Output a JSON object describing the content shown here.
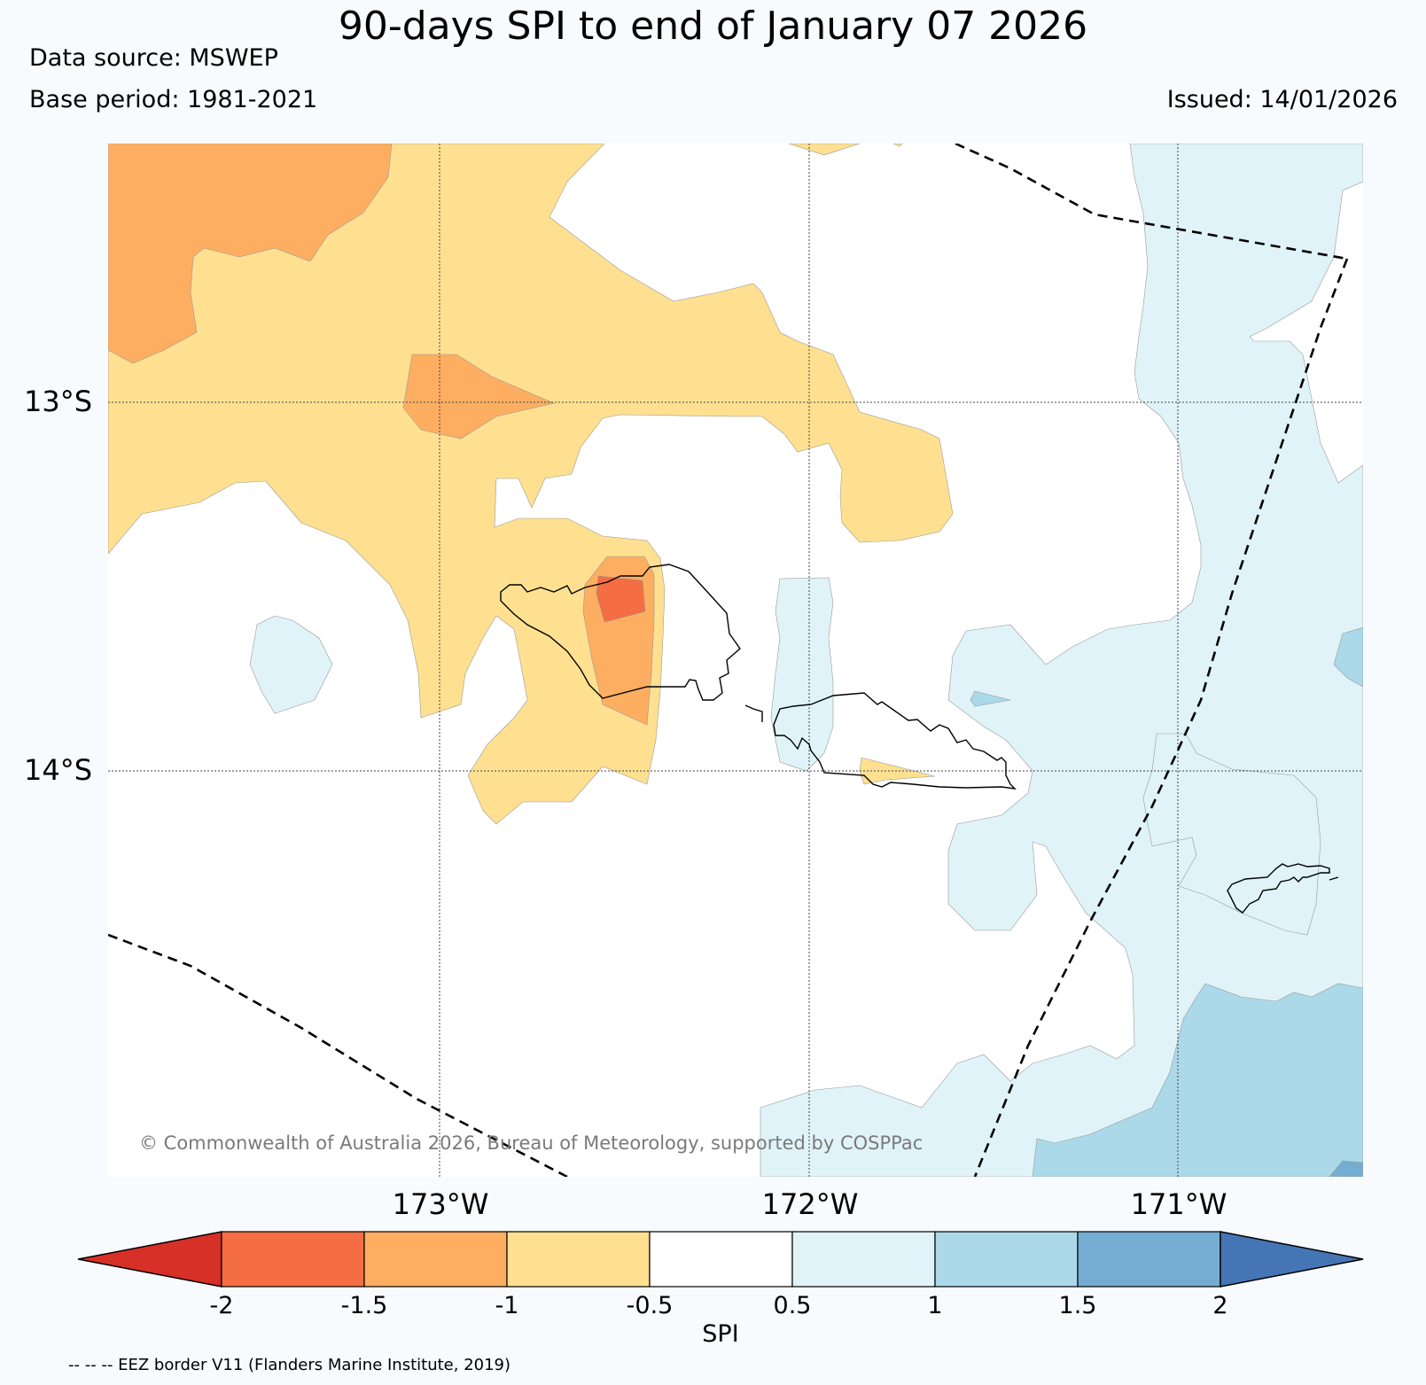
{
  "header": {
    "title": "90-days SPI to end of January 07 2026",
    "data_source": "Data source: MSWEP",
    "base_period": "Base period: 1981-2021",
    "issued": "Issued: 14/01/2026"
  },
  "map": {
    "lat_labels": [
      "13°S",
      "14°S"
    ],
    "lon_labels": [
      "173°W",
      "172°W",
      "171°W"
    ],
    "copyright": "© Commonwealth of Australia 2026, Bureau of Meteorology, supported by COSPPac"
  },
  "colorbar": {
    "label": "SPI",
    "ticks": [
      "-2",
      "-1.5",
      "-1",
      "-0.5",
      "0.5",
      "1",
      "1.5",
      "2"
    ],
    "colors": [
      "#d73027",
      "#f46d43",
      "#fdae61",
      "#fee090",
      "#ffffff",
      "#e0f3f8",
      "#abd9e9",
      "#74add1",
      "#4575b4"
    ]
  },
  "footnote": "-- -- -- EEZ border V11 (Flanders Marine Institute, 2019)"
}
